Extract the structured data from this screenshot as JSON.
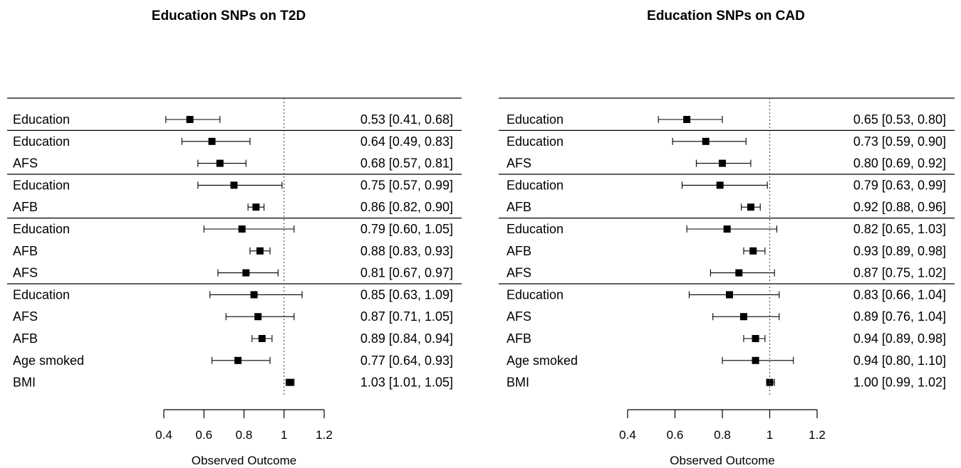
{
  "chart_data": [
    {
      "type": "forest",
      "title": "Education SNPs on T2D",
      "xlabel": "Observed Outcome",
      "ticks": [
        "0.4",
        "0.6",
        "0.8",
        "1",
        "1.2"
      ],
      "xlim": [
        0.4,
        1.2
      ],
      "reference_line": 1,
      "groups": [
        {
          "rows": [
            {
              "label": "Education",
              "estimate": 0.53,
              "lower": 0.41,
              "upper": 0.68,
              "text": "0.53 [0.41, 0.68]"
            }
          ]
        },
        {
          "rows": [
            {
              "label": "Education",
              "estimate": 0.64,
              "lower": 0.49,
              "upper": 0.83,
              "text": "0.64 [0.49, 0.83]"
            },
            {
              "label": "AFS",
              "estimate": 0.68,
              "lower": 0.57,
              "upper": 0.81,
              "text": "0.68 [0.57, 0.81]"
            }
          ]
        },
        {
          "rows": [
            {
              "label": "Education",
              "estimate": 0.75,
              "lower": 0.57,
              "upper": 0.99,
              "text": "0.75 [0.57, 0.99]"
            },
            {
              "label": "AFB",
              "estimate": 0.86,
              "lower": 0.82,
              "upper": 0.9,
              "text": "0.86 [0.82, 0.90]"
            }
          ]
        },
        {
          "rows": [
            {
              "label": "Education",
              "estimate": 0.79,
              "lower": 0.6,
              "upper": 1.05,
              "text": "0.79 [0.60, 1.05]"
            },
            {
              "label": "AFB",
              "estimate": 0.88,
              "lower": 0.83,
              "upper": 0.93,
              "text": "0.88 [0.83, 0.93]"
            },
            {
              "label": "AFS",
              "estimate": 0.81,
              "lower": 0.67,
              "upper": 0.97,
              "text": "0.81 [0.67, 0.97]"
            }
          ]
        },
        {
          "rows": [
            {
              "label": "Education",
              "estimate": 0.85,
              "lower": 0.63,
              "upper": 1.09,
              "text": "0.85 [0.63, 1.09]"
            },
            {
              "label": "AFS",
              "estimate": 0.87,
              "lower": 0.71,
              "upper": 1.05,
              "text": "0.87 [0.71, 1.05]"
            },
            {
              "label": "AFB",
              "estimate": 0.89,
              "lower": 0.84,
              "upper": 0.94,
              "text": "0.89 [0.84, 0.94]"
            },
            {
              "label": "Age smoked",
              "estimate": 0.77,
              "lower": 0.64,
              "upper": 0.93,
              "text": "0.77 [0.64, 0.93]"
            },
            {
              "label": "BMI",
              "estimate": 1.03,
              "lower": 1.01,
              "upper": 1.05,
              "text": "1.03 [1.01, 1.05]"
            }
          ]
        }
      ]
    },
    {
      "type": "forest",
      "title": "Education SNPs on CAD",
      "xlabel": "Observed Outcome",
      "ticks": [
        "0.4",
        "0.6",
        "0.8",
        "1",
        "1.2"
      ],
      "xlim": [
        0.4,
        1.2
      ],
      "reference_line": 1,
      "groups": [
        {
          "rows": [
            {
              "label": "Education",
              "estimate": 0.65,
              "lower": 0.53,
              "upper": 0.8,
              "text": "0.65 [0.53, 0.80]"
            }
          ]
        },
        {
          "rows": [
            {
              "label": "Education",
              "estimate": 0.73,
              "lower": 0.59,
              "upper": 0.9,
              "text": "0.73 [0.59, 0.90]"
            },
            {
              "label": "AFS",
              "estimate": 0.8,
              "lower": 0.69,
              "upper": 0.92,
              "text": "0.80 [0.69, 0.92]"
            }
          ]
        },
        {
          "rows": [
            {
              "label": "Education",
              "estimate": 0.79,
              "lower": 0.63,
              "upper": 0.99,
              "text": "0.79 [0.63, 0.99]"
            },
            {
              "label": "AFB",
              "estimate": 0.92,
              "lower": 0.88,
              "upper": 0.96,
              "text": "0.92 [0.88, 0.96]"
            }
          ]
        },
        {
          "rows": [
            {
              "label": "Education",
              "estimate": 0.82,
              "lower": 0.65,
              "upper": 1.03,
              "text": "0.82 [0.65, 1.03]"
            },
            {
              "label": "AFB",
              "estimate": 0.93,
              "lower": 0.89,
              "upper": 0.98,
              "text": "0.93 [0.89, 0.98]"
            },
            {
              "label": "AFS",
              "estimate": 0.87,
              "lower": 0.75,
              "upper": 1.02,
              "text": "0.87 [0.75, 1.02]"
            }
          ]
        },
        {
          "rows": [
            {
              "label": "Education",
              "estimate": 0.83,
              "lower": 0.66,
              "upper": 1.04,
              "text": "0.83 [0.66, 1.04]"
            },
            {
              "label": "AFS",
              "estimate": 0.89,
              "lower": 0.76,
              "upper": 1.04,
              "text": "0.89 [0.76, 1.04]"
            },
            {
              "label": "AFB",
              "estimate": 0.94,
              "lower": 0.89,
              "upper": 0.98,
              "text": "0.94 [0.89, 0.98]"
            },
            {
              "label": "Age smoked",
              "estimate": 0.94,
              "lower": 0.8,
              "upper": 1.1,
              "text": "0.94 [0.80, 1.10]"
            },
            {
              "label": "BMI",
              "estimate": 1.0,
              "lower": 0.99,
              "upper": 1.02,
              "text": "1.00 [0.99, 1.02]"
            }
          ]
        }
      ]
    }
  ]
}
